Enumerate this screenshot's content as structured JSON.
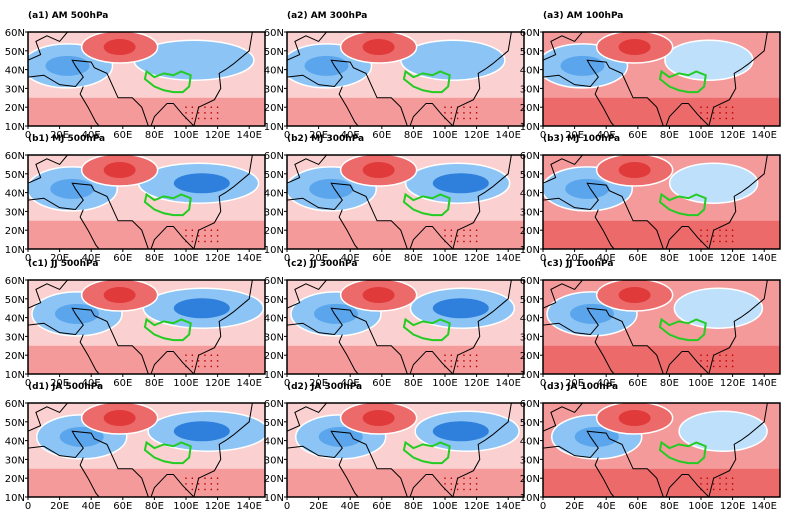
{
  "panels": [
    {
      "title": "(a1) AM 500hPa"
    },
    {
      "title": "(a2) AM 300hPa"
    },
    {
      "title": "(a3) AM 100hPa"
    },
    {
      "title": "(b1) MJ 500hPa"
    },
    {
      "title": "(b2) MJ 300hPa"
    },
    {
      "title": "(b3) MJ 100hPa"
    },
    {
      "title": "(c1) JJ 500hPa"
    },
    {
      "title": "(c2) JJ 300hPa"
    },
    {
      "title": "(c3) JJ 100hPa"
    },
    {
      "title": "(d1) JA 500hPa"
    },
    {
      "title": "(d2) JA 300hPa"
    },
    {
      "title": "(d3) JA 100hPa"
    }
  ],
  "lon_ticks": [
    "0",
    "20E",
    "40E",
    "60E",
    "80E",
    "100E",
    "120E",
    "140E"
  ],
  "lat_ticks": [
    "60N",
    "50N",
    "40N",
    "30N",
    "20N",
    "10N"
  ]
}
